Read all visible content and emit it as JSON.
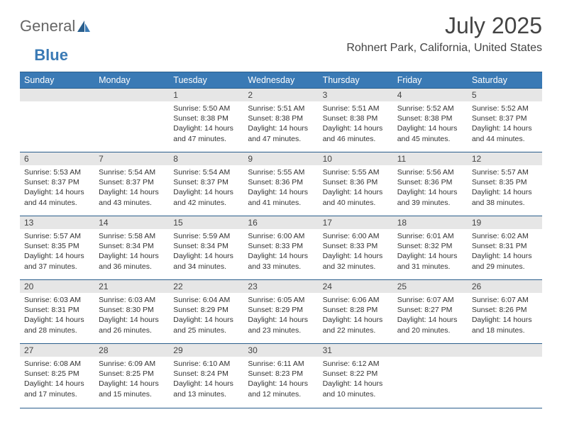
{
  "brand": {
    "part1": "General",
    "part2": "Blue"
  },
  "title": "July 2025",
  "location": "Rohnert Park, California, United States",
  "colors": {
    "header_bg": "#3a7ab5",
    "header_text": "#ffffff",
    "rule": "#2a5e8c",
    "daynum_bg": "#e6e6e6",
    "body_text": "#333333",
    "title_text": "#444444"
  },
  "weekdays": [
    "Sunday",
    "Monday",
    "Tuesday",
    "Wednesday",
    "Thursday",
    "Friday",
    "Saturday"
  ],
  "weeks": [
    [
      null,
      null,
      {
        "n": "1",
        "sr": "5:50 AM",
        "ss": "8:38 PM",
        "dl": "14 hours and 47 minutes."
      },
      {
        "n": "2",
        "sr": "5:51 AM",
        "ss": "8:38 PM",
        "dl": "14 hours and 47 minutes."
      },
      {
        "n": "3",
        "sr": "5:51 AM",
        "ss": "8:38 PM",
        "dl": "14 hours and 46 minutes."
      },
      {
        "n": "4",
        "sr": "5:52 AM",
        "ss": "8:38 PM",
        "dl": "14 hours and 45 minutes."
      },
      {
        "n": "5",
        "sr": "5:52 AM",
        "ss": "8:37 PM",
        "dl": "14 hours and 44 minutes."
      }
    ],
    [
      {
        "n": "6",
        "sr": "5:53 AM",
        "ss": "8:37 PM",
        "dl": "14 hours and 44 minutes."
      },
      {
        "n": "7",
        "sr": "5:54 AM",
        "ss": "8:37 PM",
        "dl": "14 hours and 43 minutes."
      },
      {
        "n": "8",
        "sr": "5:54 AM",
        "ss": "8:37 PM",
        "dl": "14 hours and 42 minutes."
      },
      {
        "n": "9",
        "sr": "5:55 AM",
        "ss": "8:36 PM",
        "dl": "14 hours and 41 minutes."
      },
      {
        "n": "10",
        "sr": "5:55 AM",
        "ss": "8:36 PM",
        "dl": "14 hours and 40 minutes."
      },
      {
        "n": "11",
        "sr": "5:56 AM",
        "ss": "8:36 PM",
        "dl": "14 hours and 39 minutes."
      },
      {
        "n": "12",
        "sr": "5:57 AM",
        "ss": "8:35 PM",
        "dl": "14 hours and 38 minutes."
      }
    ],
    [
      {
        "n": "13",
        "sr": "5:57 AM",
        "ss": "8:35 PM",
        "dl": "14 hours and 37 minutes."
      },
      {
        "n": "14",
        "sr": "5:58 AM",
        "ss": "8:34 PM",
        "dl": "14 hours and 36 minutes."
      },
      {
        "n": "15",
        "sr": "5:59 AM",
        "ss": "8:34 PM",
        "dl": "14 hours and 34 minutes."
      },
      {
        "n": "16",
        "sr": "6:00 AM",
        "ss": "8:33 PM",
        "dl": "14 hours and 33 minutes."
      },
      {
        "n": "17",
        "sr": "6:00 AM",
        "ss": "8:33 PM",
        "dl": "14 hours and 32 minutes."
      },
      {
        "n": "18",
        "sr": "6:01 AM",
        "ss": "8:32 PM",
        "dl": "14 hours and 31 minutes."
      },
      {
        "n": "19",
        "sr": "6:02 AM",
        "ss": "8:31 PM",
        "dl": "14 hours and 29 minutes."
      }
    ],
    [
      {
        "n": "20",
        "sr": "6:03 AM",
        "ss": "8:31 PM",
        "dl": "14 hours and 28 minutes."
      },
      {
        "n": "21",
        "sr": "6:03 AM",
        "ss": "8:30 PM",
        "dl": "14 hours and 26 minutes."
      },
      {
        "n": "22",
        "sr": "6:04 AM",
        "ss": "8:29 PM",
        "dl": "14 hours and 25 minutes."
      },
      {
        "n": "23",
        "sr": "6:05 AM",
        "ss": "8:29 PM",
        "dl": "14 hours and 23 minutes."
      },
      {
        "n": "24",
        "sr": "6:06 AM",
        "ss": "8:28 PM",
        "dl": "14 hours and 22 minutes."
      },
      {
        "n": "25",
        "sr": "6:07 AM",
        "ss": "8:27 PM",
        "dl": "14 hours and 20 minutes."
      },
      {
        "n": "26",
        "sr": "6:07 AM",
        "ss": "8:26 PM",
        "dl": "14 hours and 18 minutes."
      }
    ],
    [
      {
        "n": "27",
        "sr": "6:08 AM",
        "ss": "8:25 PM",
        "dl": "14 hours and 17 minutes."
      },
      {
        "n": "28",
        "sr": "6:09 AM",
        "ss": "8:25 PM",
        "dl": "14 hours and 15 minutes."
      },
      {
        "n": "29",
        "sr": "6:10 AM",
        "ss": "8:24 PM",
        "dl": "14 hours and 13 minutes."
      },
      {
        "n": "30",
        "sr": "6:11 AM",
        "ss": "8:23 PM",
        "dl": "14 hours and 12 minutes."
      },
      {
        "n": "31",
        "sr": "6:12 AM",
        "ss": "8:22 PM",
        "dl": "14 hours and 10 minutes."
      },
      null,
      null
    ]
  ],
  "labels": {
    "sunrise": "Sunrise:",
    "sunset": "Sunset:",
    "daylight": "Daylight:"
  }
}
